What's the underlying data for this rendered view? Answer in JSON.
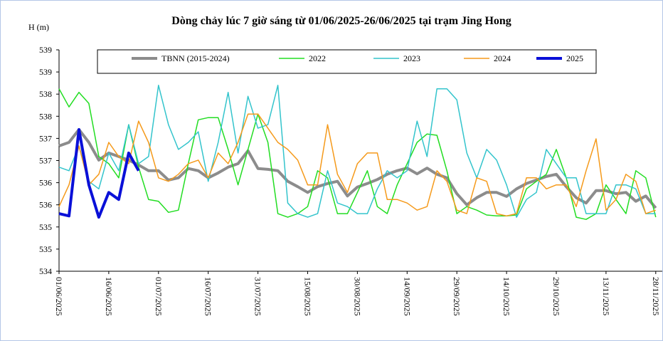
{
  "chart_data": {
    "type": "line",
    "title": "Dòng chảy lúc 7 giờ sáng từ 01/06/2025-26/06/2025 tại trạm Jing Hong",
    "y_label": "H (m)",
    "legend": "top",
    "grid": false,
    "x": [
      "01/06/2025",
      "04/06/2025",
      "07/06/2025",
      "10/06/2025",
      "13/06/2025",
      "16/06/2025",
      "19/06/2025",
      "22/06/2025",
      "25/06/2025",
      "28/06/2025",
      "01/07/2025",
      "04/07/2025",
      "07/07/2025",
      "10/07/2025",
      "13/07/2025",
      "16/07/2025",
      "19/07/2025",
      "22/07/2025",
      "25/07/2025",
      "28/07/2025",
      "31/07/2025",
      "03/08/2025",
      "06/08/2025",
      "09/08/2025",
      "12/08/2025",
      "15/08/2025",
      "18/08/2025",
      "21/08/2025",
      "24/08/2025",
      "27/08/2025",
      "30/08/2025",
      "02/09/2025",
      "05/09/2025",
      "08/09/2025",
      "11/09/2025",
      "14/09/2025",
      "17/09/2025",
      "20/09/2025",
      "23/09/2025",
      "26/09/2025",
      "29/09/2025",
      "02/10/2025",
      "05/10/2025",
      "08/10/2025",
      "11/10/2025",
      "14/10/2025",
      "17/10/2025",
      "20/10/2025",
      "23/10/2025",
      "26/10/2025",
      "29/10/2025",
      "01/11/2025",
      "04/11/2025",
      "07/11/2025",
      "10/11/2025",
      "13/11/2025",
      "16/11/2025",
      "19/11/2025",
      "22/11/2025",
      "25/11/2025",
      "28/11/2025"
    ],
    "xlim": [
      "01/06/2025",
      "30/11/2025"
    ],
    "xticks": [
      "01/06/2025",
      "16/06/2025",
      "01/07/2025",
      "16/07/2025",
      "31/07/2025",
      "15/08/2025",
      "30/08/2025",
      "14/09/2025",
      "29/09/2025",
      "14/10/2025",
      "29/10/2025",
      "13/11/2025",
      "28/11/2025"
    ],
    "ylim": [
      534,
      539
    ],
    "yticks": [
      534,
      {
        "value": 534.5,
        "label": "535"
      },
      535,
      {
        "value": 535.5,
        "label": "536"
      },
      536,
      {
        "value": 536.5,
        "label": "537"
      },
      537,
      {
        "value": 537.5,
        "label": "538"
      },
      538,
      {
        "value": 538.5,
        "label": "539"
      },
      539
    ],
    "series": [
      {
        "name": "TBNN (2015-2024)",
        "color": "#8c8c8c",
        "width": 4,
        "values": [
          536.83,
          536.91,
          537.2,
          536.91,
          536.51,
          536.67,
          536.59,
          536.51,
          536.4,
          536.27,
          536.27,
          536.06,
          536.11,
          536.32,
          536.27,
          536.11,
          536.22,
          536.35,
          536.43,
          536.72,
          536.32,
          536.3,
          536.27,
          536.03,
          535.91,
          535.78,
          535.91,
          535.98,
          536.03,
          535.7,
          535.9,
          535.98,
          536.07,
          536.19,
          536.27,
          536.33,
          536.2,
          536.33,
          536.19,
          536.11,
          535.75,
          535.5,
          535.66,
          535.78,
          535.78,
          535.69,
          535.86,
          535.98,
          536.06,
          536.14,
          536.19,
          535.91,
          535.66,
          535.54,
          535.82,
          535.82,
          535.75,
          535.78,
          535.58,
          535.7,
          535.43
        ]
      },
      {
        "name": "2022",
        "color": "#22dd22",
        "width": 1.5,
        "values": [
          538.12,
          537.71,
          538.04,
          537.79,
          536.59,
          536.43,
          536.11,
          537.31,
          536.35,
          535.62,
          535.58,
          535.33,
          535.38,
          536.43,
          537.42,
          537.47,
          537.47,
          536.75,
          535.95,
          536.75,
          537.55,
          536.91,
          535.3,
          535.22,
          535.3,
          535.46,
          536.27,
          536.11,
          535.3,
          535.3,
          535.78,
          536.27,
          535.46,
          535.3,
          535.95,
          536.43,
          536.91,
          537.1,
          537.07,
          536.27,
          535.3,
          535.46,
          535.38,
          535.27,
          535.25,
          535.25,
          535.27,
          535.86,
          536.03,
          536.19,
          536.75,
          536.11,
          535.22,
          535.17,
          535.3,
          535.95,
          535.62,
          535.3,
          536.27,
          536.11,
          535.22
        ]
      },
      {
        "name": "2023",
        "color": "#33c4cc",
        "width": 1.5,
        "values": [
          536.35,
          536.27,
          536.83,
          536.03,
          535.86,
          536.67,
          536.27,
          537.31,
          536.43,
          536.59,
          538.2,
          537.31,
          536.75,
          536.91,
          537.15,
          536.03,
          536.91,
          538.04,
          536.67,
          537.95,
          537.23,
          537.31,
          538.2,
          535.54,
          535.3,
          535.22,
          535.3,
          536.27,
          535.54,
          535.46,
          535.3,
          535.3,
          535.86,
          536.27,
          536.11,
          536.27,
          537.39,
          536.59,
          538.12,
          538.12,
          537.87,
          536.67,
          536.11,
          536.75,
          536.51,
          535.95,
          535.22,
          535.62,
          535.78,
          536.75,
          536.43,
          536.11,
          536.11,
          535.3,
          535.3,
          535.3,
          535.95,
          535.95,
          535.86,
          535.3,
          535.3
        ]
      },
      {
        "name": "2024",
        "color": "#f59a1b",
        "width": 1.5,
        "values": [
          535.46,
          535.95,
          536.83,
          535.95,
          536.19,
          536.91,
          536.59,
          536.43,
          537.39,
          536.91,
          536.11,
          536.03,
          536.19,
          536.43,
          536.51,
          536.11,
          536.67,
          536.43,
          536.91,
          537.55,
          537.55,
          537.23,
          536.91,
          536.75,
          536.51,
          535.95,
          535.95,
          537.31,
          536.19,
          535.78,
          536.43,
          536.67,
          536.67,
          535.62,
          535.62,
          535.54,
          535.38,
          535.46,
          536.27,
          536.03,
          535.38,
          535.3,
          536.11,
          536.03,
          535.3,
          535.25,
          535.3,
          536.11,
          536.11,
          535.86,
          535.95,
          535.95,
          535.46,
          536.27,
          536.99,
          535.38,
          535.62,
          536.19,
          536.03,
          535.3,
          535.38
        ]
      },
      {
        "name": "2025",
        "color": "#0a10d8",
        "width": 4,
        "values": [
          535.3,
          535.25,
          537.2,
          535.95,
          535.22,
          535.78,
          535.62,
          536.67,
          536.27,
          null,
          null,
          null,
          null,
          null,
          null,
          null,
          null,
          null,
          null,
          null,
          null,
          null,
          null,
          null,
          null,
          null,
          null,
          null,
          null,
          null,
          null,
          null,
          null,
          null,
          null,
          null,
          null,
          null,
          null,
          null,
          null,
          null,
          null,
          null,
          null,
          null,
          null,
          null,
          null,
          null,
          null,
          null,
          null,
          null,
          null,
          null,
          null,
          null,
          null,
          null,
          null
        ]
      }
    ]
  }
}
